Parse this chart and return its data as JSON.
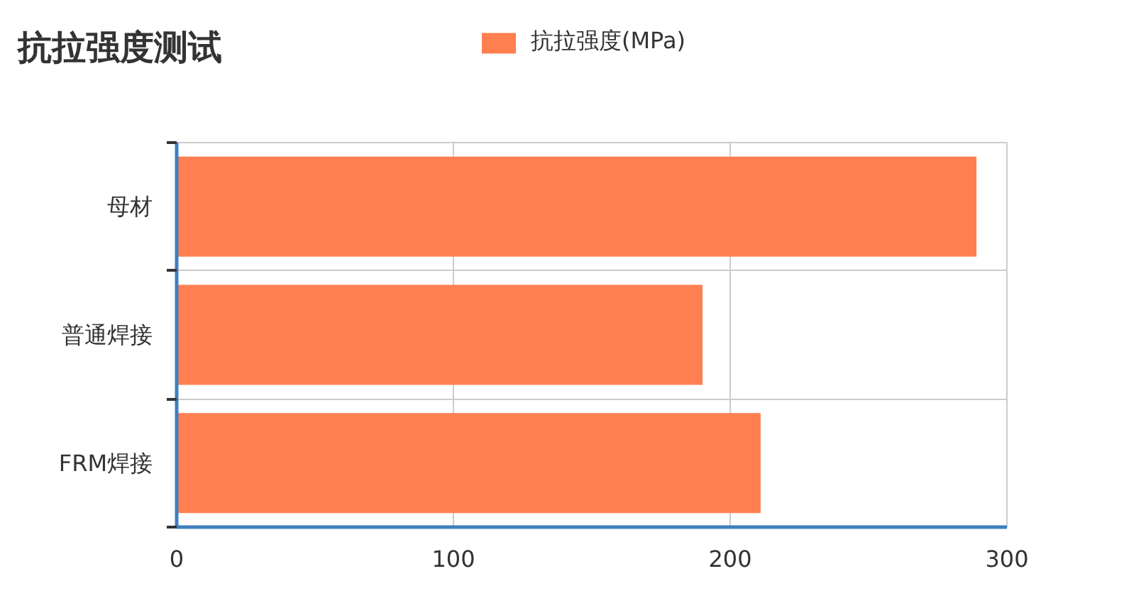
{
  "chart_data": {
    "type": "bar",
    "orientation": "horizontal",
    "title": "抗拉强度测试",
    "categories": [
      "母材",
      "普通焊接",
      "FRM焊接"
    ],
    "series": [
      {
        "name": "抗拉强度(MPa)",
        "color": "#ff7f50",
        "values": [
          289,
          190,
          211
        ]
      }
    ],
    "xlim": [
      0,
      300
    ],
    "xticks": [
      0,
      100,
      200,
      300
    ],
    "grid": true,
    "legend": "top"
  }
}
